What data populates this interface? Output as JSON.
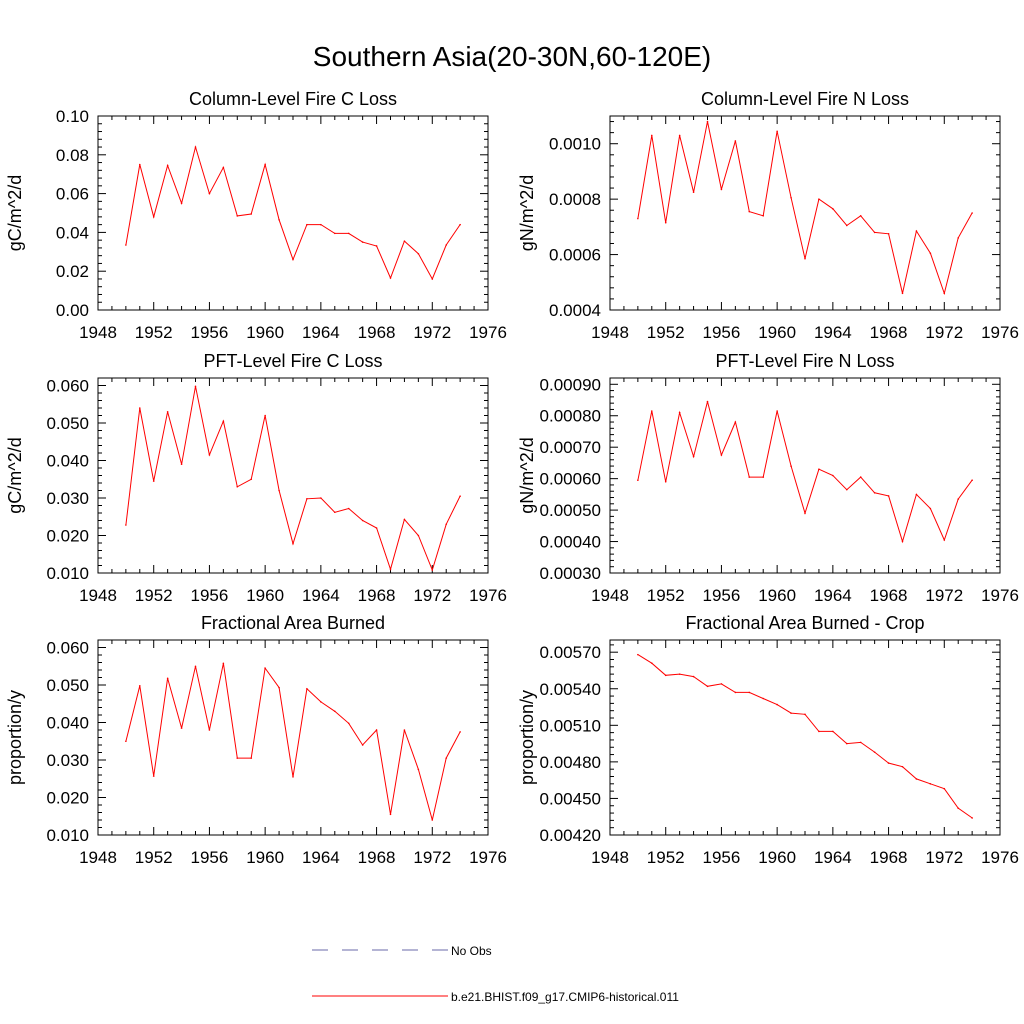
{
  "figure": {
    "title": "Southern Asia(20-30N,60-120E)",
    "legend": [
      {
        "label": "No Obs",
        "color": "#6a6aa8",
        "style": "dashed"
      },
      {
        "label": "b.e21.BHIST.f09_g17.CMIP6-historical.011",
        "color": "#ff0000",
        "style": "solid"
      }
    ],
    "line_color": "#ff0000"
  },
  "chart_data": [
    {
      "type": "line",
      "title": "Column-Level Fire C Loss",
      "ylabel": "gC/m^2/d",
      "xlim": [
        1948,
        1976
      ],
      "ylim": [
        0.0,
        0.1
      ],
      "xticks": [
        "1948",
        "1952",
        "1956",
        "1960",
        "1964",
        "1968",
        "1972",
        "1976"
      ],
      "yticks": [
        0.0,
        0.02,
        0.04,
        0.06,
        0.08,
        0.1
      ],
      "ytick_labels": [
        "0.00",
        "0.02",
        "0.04",
        "0.06",
        "0.08",
        "0.10"
      ],
      "x": [
        1950,
        1951,
        1952,
        1953,
        1954,
        1955,
        1956,
        1957,
        1958,
        1959,
        1960,
        1961,
        1962,
        1963,
        1964,
        1965,
        1966,
        1967,
        1968,
        1969,
        1970,
        1971,
        1972,
        1973,
        1974
      ],
      "series": [
        {
          "name": "b.e21.BHIST.f09_g17.CMIP6-historical.011",
          "values": [
            0.0335,
            0.075,
            0.048,
            0.0745,
            0.055,
            0.084,
            0.06,
            0.0735,
            0.0485,
            0.0495,
            0.075,
            0.0465,
            0.026,
            0.044,
            0.044,
            0.0395,
            0.0395,
            0.035,
            0.033,
            0.0165,
            0.0355,
            0.029,
            0.016,
            0.0335,
            0.044
          ]
        }
      ]
    },
    {
      "type": "line",
      "title": "Column-Level Fire N Loss",
      "ylabel": "gN/m^2/d",
      "xlim": [
        1948,
        1976
      ],
      "ylim": [
        0.0004,
        0.0011
      ],
      "xticks": [
        "1948",
        "1952",
        "1956",
        "1960",
        "1964",
        "1968",
        "1972",
        "1976"
      ],
      "yticks": [
        0.0004,
        0.0006,
        0.0008,
        0.001
      ],
      "ytick_labels": [
        "0.0004",
        "0.0006",
        "0.0008",
        "0.0010"
      ],
      "x": [
        1950,
        1951,
        1952,
        1953,
        1954,
        1955,
        1956,
        1957,
        1958,
        1959,
        1960,
        1961,
        1962,
        1963,
        1964,
        1965,
        1966,
        1967,
        1968,
        1969,
        1970,
        1971,
        1972,
        1973,
        1974
      ],
      "series": [
        {
          "name": "b.e21.BHIST.f09_g17.CMIP6-historical.011",
          "values": [
            0.00073,
            0.00103,
            0.000715,
            0.00103,
            0.000825,
            0.00108,
            0.000835,
            0.00101,
            0.000755,
            0.00074,
            0.001045,
            0.000805,
            0.000585,
            0.0008,
            0.000765,
            0.000705,
            0.00074,
            0.00068,
            0.000675,
            0.00046,
            0.000685,
            0.000605,
            0.00046,
            0.00066,
            0.00075
          ]
        }
      ]
    },
    {
      "type": "line",
      "title": "PFT-Level Fire C Loss",
      "ylabel": "gC/m^2/d",
      "xlim": [
        1948,
        1976
      ],
      "ylim": [
        0.01,
        0.062
      ],
      "xticks": [
        "1948",
        "1952",
        "1956",
        "1960",
        "1964",
        "1968",
        "1972",
        "1976"
      ],
      "yticks": [
        0.01,
        0.02,
        0.03,
        0.04,
        0.05,
        0.06
      ],
      "ytick_labels": [
        "0.010",
        "0.020",
        "0.030",
        "0.040",
        "0.050",
        "0.060"
      ],
      "x": [
        1950,
        1951,
        1952,
        1953,
        1954,
        1955,
        1956,
        1957,
        1958,
        1959,
        1960,
        1961,
        1962,
        1963,
        1964,
        1965,
        1966,
        1967,
        1968,
        1969,
        1970,
        1971,
        1972,
        1973,
        1974
      ],
      "series": [
        {
          "name": "b.e21.BHIST.f09_g17.CMIP6-historical.011",
          "values": [
            0.0228,
            0.054,
            0.0345,
            0.053,
            0.039,
            0.0598,
            0.0415,
            0.0505,
            0.033,
            0.035,
            0.052,
            0.032,
            0.0178,
            0.0298,
            0.03,
            0.0262,
            0.0272,
            0.024,
            0.022,
            0.011,
            0.0243,
            0.02,
            0.0108,
            0.023,
            0.0305
          ]
        }
      ]
    },
    {
      "type": "line",
      "title": "PFT-Level Fire N Loss",
      "ylabel": "gN/m^2/d",
      "xlim": [
        1948,
        1976
      ],
      "ylim": [
        0.0003,
        0.00092
      ],
      "xticks": [
        "1948",
        "1952",
        "1956",
        "1960",
        "1964",
        "1968",
        "1972",
        "1976"
      ],
      "yticks": [
        0.0003,
        0.0004,
        0.0005,
        0.0006,
        0.0007,
        0.0008,
        0.0009
      ],
      "ytick_labels": [
        "0.00030",
        "0.00040",
        "0.00050",
        "0.00060",
        "0.00070",
        "0.00080",
        "0.00090"
      ],
      "x": [
        1950,
        1951,
        1952,
        1953,
        1954,
        1955,
        1956,
        1957,
        1958,
        1959,
        1960,
        1961,
        1962,
        1963,
        1964,
        1965,
        1966,
        1967,
        1968,
        1969,
        1970,
        1971,
        1972,
        1973,
        1974
      ],
      "series": [
        {
          "name": "b.e21.BHIST.f09_g17.CMIP6-historical.011",
          "values": [
            0.000595,
            0.000815,
            0.00059,
            0.00081,
            0.00067,
            0.000845,
            0.000675,
            0.00078,
            0.000605,
            0.000605,
            0.000815,
            0.00064,
            0.00049,
            0.00063,
            0.00061,
            0.000565,
            0.000605,
            0.000555,
            0.000545,
            0.0004,
            0.00055,
            0.000505,
            0.000405,
            0.000535,
            0.000595
          ]
        }
      ]
    },
    {
      "type": "line",
      "title": "Fractional Area Burned",
      "ylabel": "proportion/y",
      "xlim": [
        1948,
        1976
      ],
      "ylim": [
        0.01,
        0.062
      ],
      "xticks": [
        "1948",
        "1952",
        "1956",
        "1960",
        "1964",
        "1968",
        "1972",
        "1976"
      ],
      "yticks": [
        0.01,
        0.02,
        0.03,
        0.04,
        0.05,
        0.06
      ],
      "ytick_labels": [
        "0.010",
        "0.020",
        "0.030",
        "0.040",
        "0.050",
        "0.060"
      ],
      "x": [
        1950,
        1951,
        1952,
        1953,
        1954,
        1955,
        1956,
        1957,
        1958,
        1959,
        1960,
        1961,
        1962,
        1963,
        1964,
        1965,
        1966,
        1967,
        1968,
        1969,
        1970,
        1971,
        1972,
        1973,
        1974
      ],
      "series": [
        {
          "name": "b.e21.BHIST.f09_g17.CMIP6-historical.011",
          "values": [
            0.035,
            0.0498,
            0.0257,
            0.0518,
            0.0385,
            0.055,
            0.038,
            0.0558,
            0.0305,
            0.0305,
            0.0545,
            0.0493,
            0.0255,
            0.049,
            0.0455,
            0.043,
            0.0398,
            0.034,
            0.038,
            0.0155,
            0.038,
            0.0275,
            0.014,
            0.0305,
            0.0375
          ]
        }
      ]
    },
    {
      "type": "line",
      "title": "Fractional Area Burned - Crop",
      "ylabel": "proportion/y",
      "xlim": [
        1948,
        1976
      ],
      "ylim": [
        0.0042,
        0.0058
      ],
      "xticks": [
        "1948",
        "1952",
        "1956",
        "1960",
        "1964",
        "1968",
        "1972",
        "1976"
      ],
      "yticks": [
        0.0042,
        0.0045,
        0.0048,
        0.0051,
        0.0054,
        0.0057
      ],
      "ytick_labels": [
        "0.00420",
        "0.00450",
        "0.00480",
        "0.00510",
        "0.00540",
        "0.00570"
      ],
      "x": [
        1950,
        1951,
        1952,
        1953,
        1954,
        1955,
        1956,
        1957,
        1958,
        1959,
        1960,
        1961,
        1962,
        1963,
        1964,
        1965,
        1966,
        1967,
        1968,
        1969,
        1970,
        1971,
        1972,
        1973,
        1974
      ],
      "series": [
        {
          "name": "b.e21.BHIST.f09_g17.CMIP6-historical.011",
          "values": [
            0.00568,
            0.00561,
            0.00551,
            0.00552,
            0.0055,
            0.00542,
            0.00544,
            0.00537,
            0.00537,
            0.00532,
            0.00527,
            0.0052,
            0.00519,
            0.00505,
            0.00505,
            0.00495,
            0.00496,
            0.00488,
            0.00479,
            0.00476,
            0.00466,
            0.00462,
            0.00458,
            0.00442,
            0.00434
          ]
        }
      ]
    }
  ]
}
